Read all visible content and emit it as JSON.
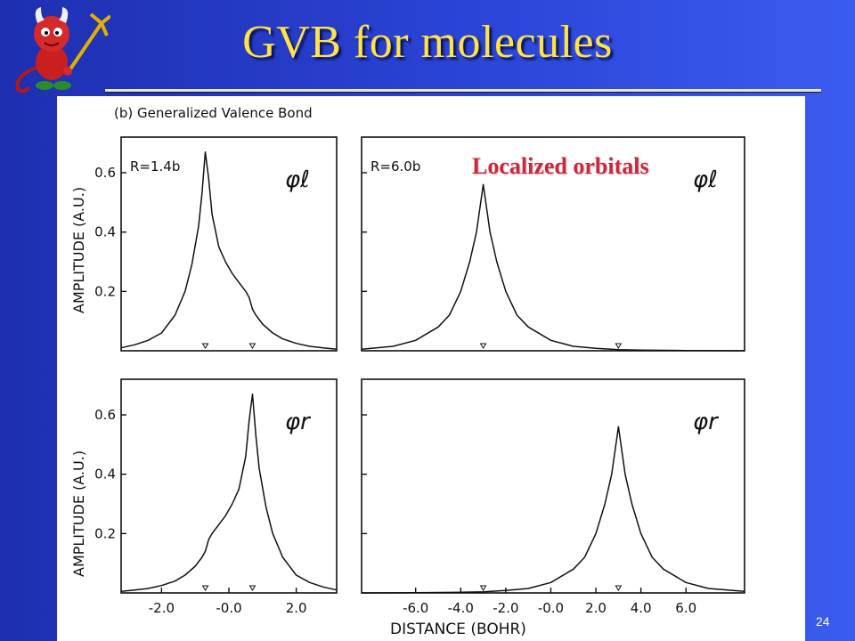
{
  "slide": {
    "title": "GVB for molecules",
    "page_number": "24",
    "overlay_label": "Localized orbitals"
  },
  "mascot": {
    "icon": "devil-mascot-icon"
  },
  "chart_data": {
    "type": "line",
    "title": "(b) Generalized Valence Bond",
    "xlabel": "DISTANCE (BOHR)",
    "ylabel": "AMPLITUDE (A.U.)",
    "colors": {
      "curve": "#111111",
      "frame": "#111111"
    },
    "panels": [
      {
        "id": "top-left",
        "annotation": "R=1.4b",
        "orbital": "φℓ",
        "xlim": [
          -3.2,
          3.2
        ],
        "ylim": [
          0,
          0.72
        ],
        "y_ticks": [
          0.2,
          0.4,
          0.6
        ],
        "y_tick_labels": [
          "0.2",
          "0.4",
          "0.6"
        ],
        "x_ticks": [],
        "x_tick_labels": [],
        "nuclei": [
          -0.7,
          0.7
        ],
        "series": [
          {
            "x": [
              -3.2,
              -2.8,
              -2.4,
              -2.0,
              -1.6,
              -1.3,
              -1.1,
              -0.9,
              -0.8,
              -0.7,
              -0.6,
              -0.5,
              -0.3,
              -0.1,
              0.1,
              0.3,
              0.5,
              0.6,
              0.7,
              0.8,
              1.0,
              1.3,
              1.6,
              2.0,
              2.4,
              2.8,
              3.2
            ],
            "y": [
              0.01,
              0.02,
              0.035,
              0.06,
              0.12,
              0.2,
              0.29,
              0.42,
              0.53,
              0.67,
              0.58,
              0.46,
              0.35,
              0.3,
              0.26,
              0.23,
              0.2,
              0.18,
              0.14,
              0.12,
              0.09,
              0.06,
              0.04,
              0.025,
              0.015,
              0.01,
              0.005
            ]
          }
        ]
      },
      {
        "id": "top-right",
        "annotation": "R=6.0b",
        "orbital": "φℓ",
        "xlim": [
          -8.4,
          8.6
        ],
        "ylim": [
          0,
          0.72
        ],
        "y_ticks": [
          0.2,
          0.4,
          0.6
        ],
        "y_tick_labels": [],
        "x_ticks": [],
        "x_tick_labels": [],
        "nuclei": [
          -3.0,
          3.0
        ],
        "series": [
          {
            "x": [
              -8.4,
              -7.0,
              -6.0,
              -5.0,
              -4.5,
              -4.0,
              -3.6,
              -3.3,
              -3.0,
              -2.7,
              -2.4,
              -2.0,
              -1.5,
              -1.0,
              0.0,
              1.0,
              2.0,
              3.0,
              4.0,
              6.0,
              8.6
            ],
            "y": [
              0.005,
              0.015,
              0.035,
              0.08,
              0.12,
              0.2,
              0.3,
              0.4,
              0.56,
              0.4,
              0.3,
              0.2,
              0.12,
              0.08,
              0.035,
              0.015,
              0.008,
              0.004,
              0.002,
              0.001,
              0.0
            ]
          }
        ]
      },
      {
        "id": "bottom-left",
        "annotation": "",
        "orbital": "φr",
        "xlim": [
          -3.2,
          3.2
        ],
        "ylim": [
          0,
          0.72
        ],
        "y_ticks": [
          0.2,
          0.4,
          0.6
        ],
        "y_tick_labels": [
          "0.2",
          "0.4",
          "0.6"
        ],
        "x_ticks": [
          -2.0,
          0.0,
          2.0
        ],
        "x_tick_labels": [
          "-2.0",
          "-0.0",
          "2.0"
        ],
        "nuclei": [
          -0.7,
          0.7
        ],
        "series": [
          {
            "x": [
              -3.2,
              -2.8,
              -2.4,
              -2.0,
              -1.6,
              -1.3,
              -1.0,
              -0.8,
              -0.7,
              -0.6,
              -0.5,
              -0.3,
              -0.1,
              0.1,
              0.3,
              0.5,
              0.6,
              0.7,
              0.8,
              0.9,
              1.1,
              1.3,
              1.6,
              2.0,
              2.4,
              2.8,
              3.2
            ],
            "y": [
              0.005,
              0.01,
              0.015,
              0.025,
              0.04,
              0.06,
              0.09,
              0.12,
              0.14,
              0.18,
              0.2,
              0.23,
              0.26,
              0.3,
              0.35,
              0.46,
              0.58,
              0.67,
              0.53,
              0.42,
              0.29,
              0.2,
              0.12,
              0.06,
              0.035,
              0.02,
              0.01
            ]
          }
        ]
      },
      {
        "id": "bottom-right",
        "annotation": "",
        "orbital": "φr",
        "xlim": [
          -8.4,
          8.6
        ],
        "ylim": [
          0,
          0.72
        ],
        "y_ticks": [
          0.2,
          0.4,
          0.6
        ],
        "y_tick_labels": [],
        "x_ticks": [
          -6.0,
          -4.0,
          -2.0,
          0.0,
          2.0,
          4.0,
          6.0
        ],
        "x_tick_labels": [
          "-6.0",
          "-4.0",
          "-2.0",
          "-0.0",
          "2.0",
          "4.0",
          "6.0"
        ],
        "nuclei": [
          -3.0,
          3.0
        ],
        "series": [
          {
            "x": [
              -8.4,
              -6.0,
              -4.0,
              -3.0,
              -2.0,
              -1.0,
              0.0,
              1.0,
              1.5,
              2.0,
              2.4,
              2.7,
              3.0,
              3.3,
              3.6,
              4.0,
              4.5,
              5.0,
              6.0,
              7.0,
              8.6
            ],
            "y": [
              0.0,
              0.001,
              0.002,
              0.004,
              0.008,
              0.015,
              0.035,
              0.08,
              0.12,
              0.2,
              0.3,
              0.4,
              0.56,
              0.4,
              0.3,
              0.2,
              0.12,
              0.08,
              0.035,
              0.015,
              0.005
            ]
          }
        ]
      }
    ]
  }
}
